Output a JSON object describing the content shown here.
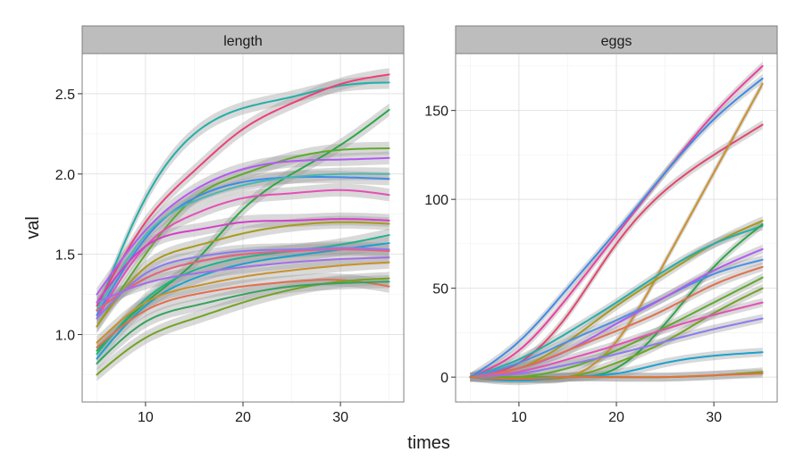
{
  "chart_data": {
    "type": "line",
    "xlabel": "times",
    "ylabel": "val",
    "panels": [
      {
        "name": "length",
        "xlim": [
          3.5,
          36.5
        ],
        "ylim": [
          0.58,
          2.75
        ],
        "xticks": [
          10,
          20,
          30
        ],
        "yticks": [
          1.0,
          1.5,
          2.0,
          2.5
        ],
        "ytick_labels": [
          "1.0",
          "1.5",
          "2.0",
          "2.5"
        ],
        "x": [
          5,
          10,
          15,
          20,
          25,
          30,
          35
        ],
        "band": 0.04,
        "series": [
          {
            "color": "#22AFA9",
            "values": [
              1.15,
              1.85,
              2.25,
              2.41,
              2.48,
              2.55,
              2.57
            ]
          },
          {
            "color": "#EF3F78",
            "values": [
              1.18,
              1.7,
              2.02,
              2.28,
              2.44,
              2.56,
              2.62
            ]
          },
          {
            "color": "#2BA846",
            "values": [
              0.9,
              1.2,
              1.45,
              1.78,
              2.0,
              2.18,
              2.4
            ]
          },
          {
            "color": "#5EAA2C",
            "values": [
              1.05,
              1.5,
              1.85,
              2.0,
              2.1,
              2.15,
              2.16
            ]
          },
          {
            "color": "#B25AF3",
            "values": [
              1.25,
              1.65,
              1.9,
              2.03,
              2.08,
              2.09,
              2.1
            ]
          },
          {
            "color": "#3D8BEA",
            "values": [
              1.12,
              1.6,
              1.85,
              1.95,
              1.98,
              1.98,
              1.97
            ]
          },
          {
            "color": "#4AB8B0",
            "values": [
              1.15,
              1.62,
              1.83,
              1.93,
              1.98,
              2.0,
              2.0
            ]
          },
          {
            "color": "#E54FB5",
            "values": [
              1.1,
              1.55,
              1.75,
              1.85,
              1.88,
              1.9,
              1.87
            ]
          },
          {
            "color": "#D33FC9",
            "values": [
              1.2,
              1.55,
              1.65,
              1.7,
              1.71,
              1.72,
              1.71
            ]
          },
          {
            "color": "#A89A1C",
            "values": [
              1.05,
              1.42,
              1.55,
              1.63,
              1.68,
              1.7,
              1.69
            ]
          },
          {
            "color": "#1EB38C",
            "values": [
              0.88,
              1.22,
              1.4,
              1.48,
              1.52,
              1.56,
              1.62
            ]
          },
          {
            "color": "#19A2D0",
            "values": [
              0.85,
              1.18,
              1.35,
              1.44,
              1.49,
              1.53,
              1.57
            ]
          },
          {
            "color": "#E8607A",
            "values": [
              1.15,
              1.35,
              1.45,
              1.5,
              1.52,
              1.53,
              1.52
            ]
          },
          {
            "color": "#8C7AF0",
            "values": [
              1.1,
              1.38,
              1.48,
              1.52,
              1.53,
              1.54,
              1.53
            ]
          },
          {
            "color": "#A36EE8",
            "values": [
              1.2,
              1.32,
              1.38,
              1.42,
              1.45,
              1.47,
              1.48
            ]
          },
          {
            "color": "#C9912A",
            "values": [
              0.95,
              1.2,
              1.3,
              1.36,
              1.4,
              1.43,
              1.45
            ]
          },
          {
            "color": "#E26F4E",
            "values": [
              0.92,
              1.15,
              1.25,
              1.3,
              1.33,
              1.34,
              1.3
            ]
          },
          {
            "color": "#73A324",
            "values": [
              0.75,
              0.98,
              1.1,
              1.2,
              1.28,
              1.33,
              1.35
            ]
          },
          {
            "color": "#35A35C",
            "values": [
              0.82,
              1.08,
              1.18,
              1.25,
              1.3,
              1.32,
              1.33
            ]
          }
        ]
      },
      {
        "name": "eggs",
        "xlim": [
          3.5,
          36.5
        ],
        "ylim": [
          -14,
          182
        ],
        "xticks": [
          10,
          20,
          30
        ],
        "yticks": [
          0,
          50,
          100,
          150
        ],
        "ytick_labels": [
          "0",
          "50",
          "100",
          "150"
        ],
        "x": [
          5,
          10,
          15,
          20,
          25,
          30,
          35
        ],
        "band": 2.5,
        "series": [
          {
            "color": "#EF3F9E",
            "values": [
              0,
              15,
              45,
              80,
              115,
              148,
              175
            ]
          },
          {
            "color": "#3D8BEA",
            "values": [
              0,
              20,
              50,
              82,
              115,
              145,
              168
            ]
          },
          {
            "color": "#E5466E",
            "values": [
              0,
              8,
              35,
              75,
              105,
              125,
              142
            ]
          },
          {
            "color": "#C9912A",
            "values": [
              0,
              0,
              0,
              20,
              65,
              115,
              165
            ]
          },
          {
            "color": "#A89A1C",
            "values": [
              0,
              5,
              20,
              40,
              58,
              75,
              88
            ]
          },
          {
            "color": "#22AFA9",
            "values": [
              0,
              10,
              25,
              42,
              60,
              75,
              85
            ]
          },
          {
            "color": "#2BA846",
            "values": [
              0,
              0,
              0,
              5,
              30,
              62,
              86
            ]
          },
          {
            "color": "#4A8FE8",
            "values": [
              0,
              8,
              20,
              32,
              45,
              58,
              66
            ]
          },
          {
            "color": "#B25AF3",
            "values": [
              0,
              5,
              15,
              30,
              45,
              60,
              72
            ]
          },
          {
            "color": "#E26F4E",
            "values": [
              0,
              5,
              15,
              26,
              38,
              52,
              62
            ]
          },
          {
            "color": "#5EAA2C",
            "values": [
              0,
              0,
              5,
              15,
              28,
              42,
              56
            ]
          },
          {
            "color": "#73A324",
            "values": [
              0,
              0,
              0,
              8,
              20,
              36,
              50
            ]
          },
          {
            "color": "#E54FB5",
            "values": [
              0,
              3,
              10,
              18,
              27,
              35,
              42
            ]
          },
          {
            "color": "#8C7AF0",
            "values": [
              0,
              2,
              7,
              13,
              20,
              27,
              33
            ]
          },
          {
            "color": "#19A2D0",
            "values": [
              0,
              -2,
              0,
              2,
              8,
              12,
              14
            ]
          },
          {
            "color": "#7BA21E",
            "values": [
              0,
              -1,
              0,
              0,
              0,
              1,
              3
            ]
          },
          {
            "color": "#E0703A",
            "values": [
              0,
              -1,
              0,
              0,
              0,
              1,
              2
            ]
          }
        ]
      }
    ]
  }
}
